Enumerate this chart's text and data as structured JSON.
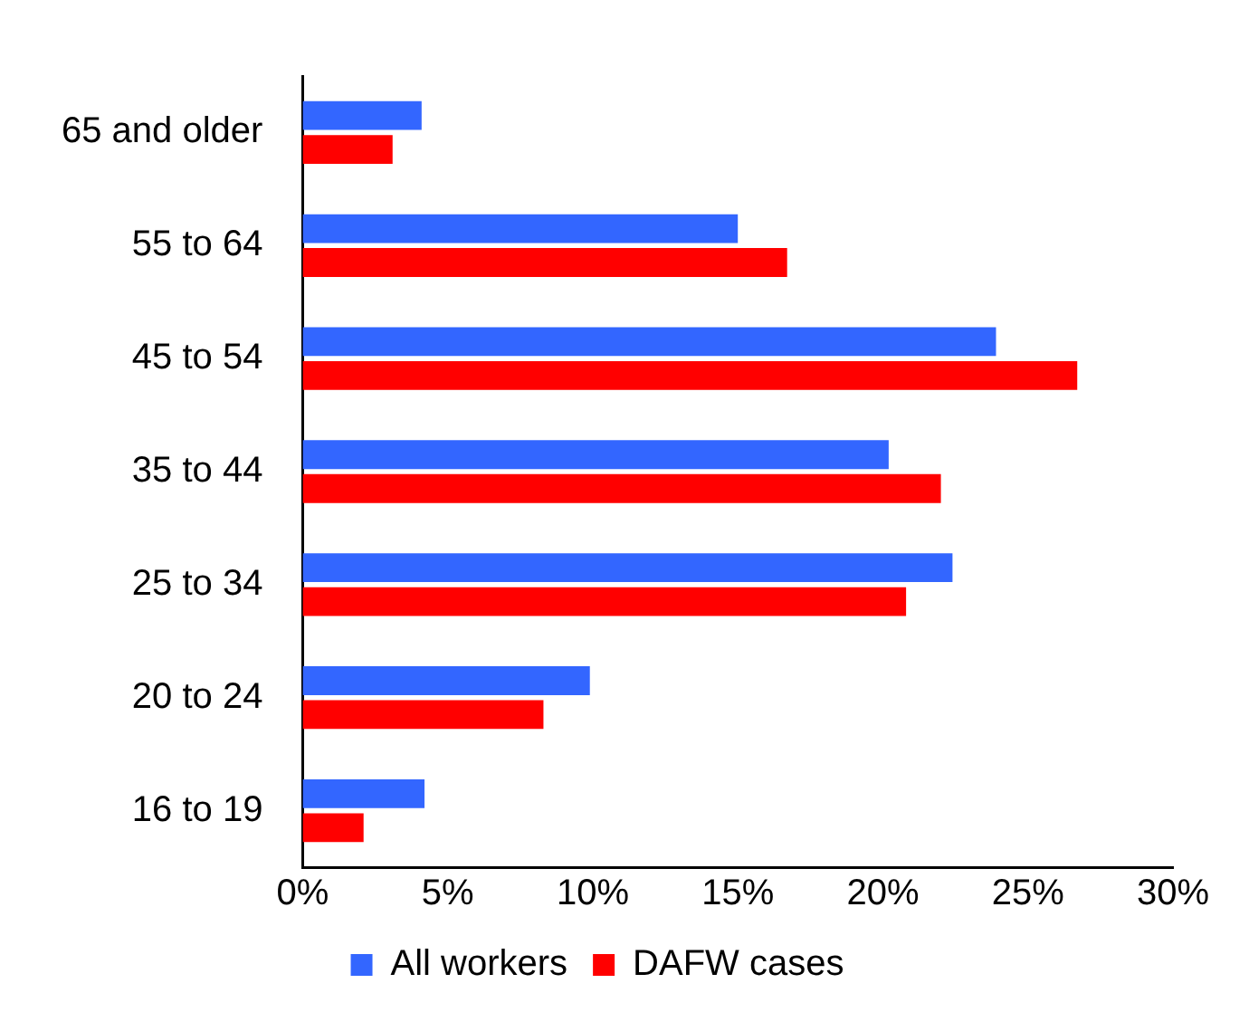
{
  "chart_data": {
    "type": "bar",
    "orientation": "horizontal",
    "categories": [
      "65 and older",
      "55 to 64",
      "45 to 54",
      "35 to 44",
      "25 to 34",
      "20 to 24",
      "16 to 19"
    ],
    "series": [
      {
        "name": "All workers",
        "color": "#3366ff",
        "values": [
          4.1,
          15.0,
          23.9,
          20.2,
          22.4,
          9.9,
          4.2
        ]
      },
      {
        "name": "DAFW cases",
        "color": "#ff0000",
        "values": [
          3.1,
          16.7,
          26.7,
          22.0,
          20.8,
          8.3,
          2.1
        ]
      }
    ],
    "xlim": [
      0,
      30
    ],
    "xticks": [
      {
        "value": 0,
        "label": "0%"
      },
      {
        "value": 5,
        "label": "5%"
      },
      {
        "value": 10,
        "label": "10%"
      },
      {
        "value": 15,
        "label": "15%"
      },
      {
        "value": 20,
        "label": "20%"
      },
      {
        "value": 25,
        "label": "25%"
      },
      {
        "value": 30,
        "label": "30%"
      }
    ],
    "grid": false,
    "legend": "bottom"
  }
}
